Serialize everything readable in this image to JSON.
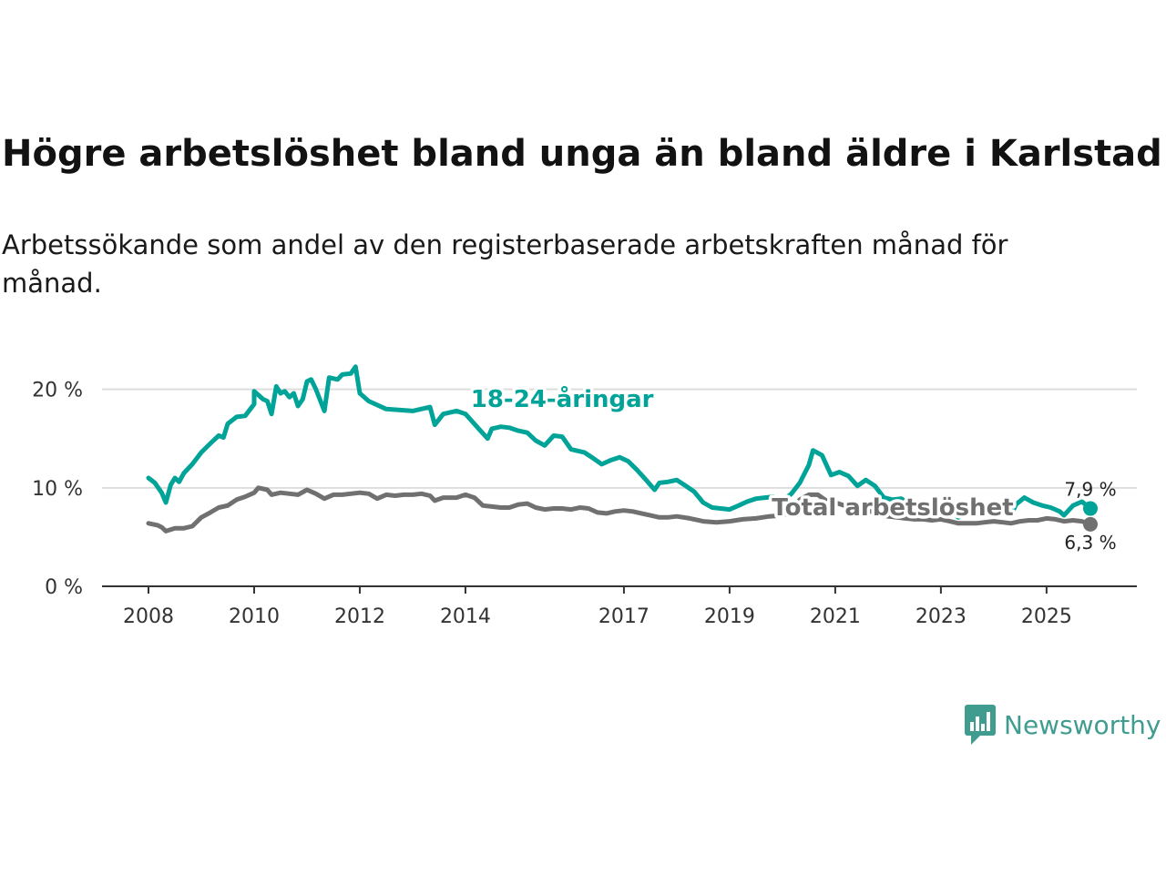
{
  "title": "Högre arbetslöshet bland unga än bland äldre i Karlstad",
  "subtitle": "Arbetssökande som andel av den registerbaserade arbetskraften månad för månad.",
  "logo_text": "Newsworthy",
  "colors": {
    "youth": "#00a398",
    "total": "#707070",
    "grid": "#dddddd",
    "axis": "#333333"
  },
  "chart_data": {
    "type": "line",
    "title": "Högre arbetslöshet bland unga än bland äldre i Karlstad",
    "xlabel": "",
    "ylabel": "",
    "xlim": [
      2007.9,
      2026.0
    ],
    "ylim": [
      0,
      22
    ],
    "x_ticks": [
      2008,
      2010,
      2012,
      2014,
      2017,
      2019,
      2021,
      2023,
      2025
    ],
    "x_tick_labels": [
      "2008",
      "2010",
      "2012",
      "2014",
      "2017",
      "2019",
      "2021",
      "2023",
      "2025"
    ],
    "y_ticks": [
      0,
      10,
      20
    ],
    "y_tick_labels": [
      "0 %",
      "10 %",
      "20 %"
    ],
    "series": [
      {
        "name": "18-24-åringar",
        "points": [
          [
            2008.0,
            11.0
          ],
          [
            2008.12,
            10.5
          ],
          [
            2008.25,
            9.5
          ],
          [
            2008.33,
            8.5
          ],
          [
            2008.42,
            10.3
          ],
          [
            2008.5,
            11.0
          ],
          [
            2008.58,
            10.6
          ],
          [
            2008.67,
            11.5
          ],
          [
            2008.83,
            12.4
          ],
          [
            2009.0,
            13.6
          ],
          [
            2009.17,
            14.5
          ],
          [
            2009.33,
            15.3
          ],
          [
            2009.42,
            15.1
          ],
          [
            2009.5,
            16.5
          ],
          [
            2009.67,
            17.2
          ],
          [
            2009.83,
            17.3
          ],
          [
            2010.0,
            18.5
          ],
          [
            2010.0,
            19.8
          ],
          [
            2010.17,
            19.0
          ],
          [
            2010.25,
            18.8
          ],
          [
            2010.33,
            17.5
          ],
          [
            2010.42,
            20.3
          ],
          [
            2010.5,
            19.6
          ],
          [
            2010.58,
            19.8
          ],
          [
            2010.67,
            19.2
          ],
          [
            2010.75,
            19.6
          ],
          [
            2010.83,
            18.3
          ],
          [
            2010.92,
            19.0
          ],
          [
            2011.0,
            20.8
          ],
          [
            2011.08,
            21.0
          ],
          [
            2011.17,
            20.0
          ],
          [
            2011.33,
            17.8
          ],
          [
            2011.42,
            21.2
          ],
          [
            2011.58,
            21.0
          ],
          [
            2011.67,
            21.5
          ],
          [
            2011.83,
            21.6
          ],
          [
            2011.92,
            22.3
          ],
          [
            2012.0,
            19.6
          ],
          [
            2012.17,
            18.8
          ],
          [
            2012.5,
            18.0
          ],
          [
            2013.0,
            17.8
          ],
          [
            2013.33,
            18.2
          ],
          [
            2013.42,
            16.4
          ],
          [
            2013.58,
            17.5
          ],
          [
            2013.83,
            17.8
          ],
          [
            2014.0,
            17.5
          ],
          [
            2014.25,
            16.0
          ],
          [
            2014.42,
            15.0
          ],
          [
            2014.5,
            16.0
          ],
          [
            2014.67,
            16.2
          ],
          [
            2014.83,
            16.1
          ],
          [
            2015.0,
            15.8
          ],
          [
            2015.17,
            15.6
          ],
          [
            2015.33,
            14.8
          ],
          [
            2015.5,
            14.3
          ],
          [
            2015.67,
            15.3
          ],
          [
            2015.83,
            15.2
          ],
          [
            2016.0,
            13.9
          ],
          [
            2016.25,
            13.6
          ],
          [
            2016.42,
            13.0
          ],
          [
            2016.58,
            12.4
          ],
          [
            2016.75,
            12.8
          ],
          [
            2016.92,
            13.1
          ],
          [
            2017.08,
            12.7
          ],
          [
            2017.25,
            11.8
          ],
          [
            2017.42,
            10.8
          ],
          [
            2017.58,
            9.8
          ],
          [
            2017.67,
            10.5
          ],
          [
            2017.83,
            10.6
          ],
          [
            2018.0,
            10.8
          ],
          [
            2018.17,
            10.2
          ],
          [
            2018.33,
            9.6
          ],
          [
            2018.5,
            8.5
          ],
          [
            2018.67,
            8.0
          ],
          [
            2018.83,
            7.9
          ],
          [
            2019.0,
            7.8
          ],
          [
            2019.17,
            8.2
          ],
          [
            2019.33,
            8.6
          ],
          [
            2019.5,
            8.9
          ],
          [
            2019.67,
            9.0
          ],
          [
            2019.83,
            9.1
          ],
          [
            2020.0,
            8.8
          ],
          [
            2020.08,
            9.0
          ],
          [
            2020.17,
            9.4
          ],
          [
            2020.33,
            10.5
          ],
          [
            2020.5,
            12.3
          ],
          [
            2020.58,
            13.8
          ],
          [
            2020.75,
            13.3
          ],
          [
            2020.92,
            11.3
          ],
          [
            2021.08,
            11.6
          ],
          [
            2021.25,
            11.2
          ],
          [
            2021.42,
            10.2
          ],
          [
            2021.58,
            10.8
          ],
          [
            2021.75,
            10.2
          ],
          [
            2021.92,
            9.0
          ],
          [
            2022.08,
            8.8
          ],
          [
            2022.25,
            8.9
          ],
          [
            2022.42,
            8.3
          ],
          [
            2022.58,
            8.2
          ],
          [
            2022.75,
            8.4
          ],
          [
            2022.92,
            8.1
          ],
          [
            2023.08,
            7.6
          ],
          [
            2023.25,
            7.4
          ],
          [
            2023.33,
            7.0
          ],
          [
            2023.5,
            7.5
          ],
          [
            2023.67,
            7.6
          ],
          [
            2023.83,
            7.6
          ],
          [
            2024.0,
            7.6
          ],
          [
            2024.17,
            7.4
          ],
          [
            2024.33,
            7.2
          ],
          [
            2024.42,
            8.3
          ],
          [
            2024.58,
            9.0
          ],
          [
            2024.75,
            8.5
          ],
          [
            2024.92,
            8.2
          ],
          [
            2025.08,
            8.0
          ],
          [
            2025.25,
            7.6
          ],
          [
            2025.33,
            7.2
          ],
          [
            2025.5,
            8.2
          ],
          [
            2025.67,
            8.6
          ],
          [
            2025.83,
            7.9
          ]
        ]
      },
      {
        "name": "Total arbetslöshet",
        "points": [
          [
            2008.0,
            6.4
          ],
          [
            2008.17,
            6.2
          ],
          [
            2008.25,
            6.0
          ],
          [
            2008.33,
            5.6
          ],
          [
            2008.5,
            5.9
          ],
          [
            2008.67,
            5.9
          ],
          [
            2008.83,
            6.1
          ],
          [
            2009.0,
            7.0
          ],
          [
            2009.17,
            7.5
          ],
          [
            2009.33,
            8.0
          ],
          [
            2009.5,
            8.2
          ],
          [
            2009.67,
            8.8
          ],
          [
            2009.83,
            9.1
          ],
          [
            2010.0,
            9.5
          ],
          [
            2010.08,
            10.0
          ],
          [
            2010.25,
            9.8
          ],
          [
            2010.33,
            9.3
          ],
          [
            2010.5,
            9.5
          ],
          [
            2010.67,
            9.4
          ],
          [
            2010.83,
            9.3
          ],
          [
            2011.0,
            9.8
          ],
          [
            2011.17,
            9.4
          ],
          [
            2011.33,
            8.9
          ],
          [
            2011.5,
            9.3
          ],
          [
            2011.67,
            9.3
          ],
          [
            2011.83,
            9.4
          ],
          [
            2012.0,
            9.5
          ],
          [
            2012.17,
            9.4
          ],
          [
            2012.33,
            8.9
          ],
          [
            2012.5,
            9.3
          ],
          [
            2012.67,
            9.2
          ],
          [
            2012.83,
            9.3
          ],
          [
            2013.0,
            9.3
          ],
          [
            2013.17,
            9.4
          ],
          [
            2013.33,
            9.2
          ],
          [
            2013.42,
            8.7
          ],
          [
            2013.58,
            9.0
          ],
          [
            2013.83,
            9.0
          ],
          [
            2014.0,
            9.3
          ],
          [
            2014.17,
            9.0
          ],
          [
            2014.33,
            8.2
          ],
          [
            2014.5,
            8.1
          ],
          [
            2014.67,
            8.0
          ],
          [
            2014.83,
            8.0
          ],
          [
            2015.0,
            8.3
          ],
          [
            2015.17,
            8.4
          ],
          [
            2015.33,
            8.0
          ],
          [
            2015.5,
            7.8
          ],
          [
            2015.67,
            7.9
          ],
          [
            2015.83,
            7.9
          ],
          [
            2016.0,
            7.8
          ],
          [
            2016.17,
            8.0
          ],
          [
            2016.33,
            7.9
          ],
          [
            2016.5,
            7.5
          ],
          [
            2016.67,
            7.4
          ],
          [
            2016.83,
            7.6
          ],
          [
            2017.0,
            7.7
          ],
          [
            2017.17,
            7.6
          ],
          [
            2017.33,
            7.4
          ],
          [
            2017.5,
            7.2
          ],
          [
            2017.67,
            7.0
          ],
          [
            2017.83,
            7.0
          ],
          [
            2018.0,
            7.1
          ],
          [
            2018.25,
            6.9
          ],
          [
            2018.5,
            6.6
          ],
          [
            2018.75,
            6.5
          ],
          [
            2019.0,
            6.6
          ],
          [
            2019.25,
            6.8
          ],
          [
            2019.5,
            6.9
          ],
          [
            2019.75,
            7.1
          ],
          [
            2020.0,
            7.2
          ],
          [
            2020.17,
            7.6
          ],
          [
            2020.33,
            8.8
          ],
          [
            2020.5,
            9.3
          ],
          [
            2020.67,
            9.3
          ],
          [
            2020.83,
            8.7
          ],
          [
            2021.0,
            8.5
          ],
          [
            2021.17,
            8.2
          ],
          [
            2021.33,
            7.9
          ],
          [
            2021.5,
            7.8
          ],
          [
            2021.67,
            7.6
          ],
          [
            2021.83,
            7.3
          ],
          [
            2022.0,
            7.1
          ],
          [
            2022.17,
            7.0
          ],
          [
            2022.33,
            6.9
          ],
          [
            2022.5,
            6.8
          ],
          [
            2022.67,
            6.8
          ],
          [
            2022.83,
            6.7
          ],
          [
            2023.0,
            6.8
          ],
          [
            2023.17,
            6.6
          ],
          [
            2023.33,
            6.4
          ],
          [
            2023.5,
            6.4
          ],
          [
            2023.67,
            6.4
          ],
          [
            2023.83,
            6.5
          ],
          [
            2024.0,
            6.6
          ],
          [
            2024.17,
            6.5
          ],
          [
            2024.33,
            6.4
          ],
          [
            2024.5,
            6.6
          ],
          [
            2024.67,
            6.7
          ],
          [
            2024.83,
            6.7
          ],
          [
            2025.0,
            6.9
          ],
          [
            2025.17,
            6.8
          ],
          [
            2025.33,
            6.6
          ],
          [
            2025.5,
            6.7
          ],
          [
            2025.67,
            6.6
          ],
          [
            2025.83,
            6.3
          ]
        ]
      }
    ],
    "series_labels": [
      {
        "text": "18-24-åringar",
        "x": 2014.1,
        "y": 18.2
      },
      {
        "text": "Total arbetslöshet",
        "x": 2019.8,
        "y": 7.2
      }
    ],
    "end_labels": [
      {
        "text": "7,9 %",
        "x": 2025.83,
        "y": 7.9
      },
      {
        "text": "6,3 %",
        "x": 2025.83,
        "y": 6.3
      }
    ]
  }
}
